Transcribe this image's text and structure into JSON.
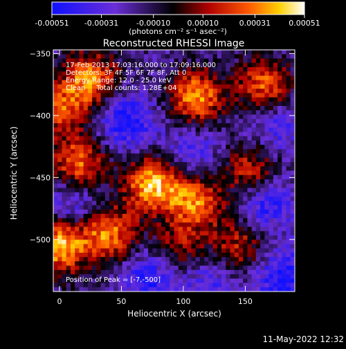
{
  "chart_data": {
    "type": "heatmap",
    "title": "Reconstructed RHESSI Image",
    "xlabel": "Heliocentric X (arcsec)",
    "ylabel": "Heliocentric Y (arcsec)",
    "xlim": [
      -5,
      190
    ],
    "ylim": [
      -542,
      -347
    ],
    "x_ticks": [
      0,
      50,
      100,
      150
    ],
    "y_ticks": [
      -350,
      -400,
      -450,
      -500
    ],
    "colorbar": {
      "ticks": [
        -0.00051,
        -0.00031,
        -0.0001,
        0.0001,
        0.00031,
        0.00051
      ],
      "tick_labels": [
        "-0.00051",
        "-0.00031",
        "-0.00010",
        "0.00010",
        "0.00031",
        "0.00051"
      ],
      "units": "(photons cm⁻² s⁻¹ asec⁻²)",
      "range": [
        -0.00051,
        0.00051
      ],
      "colormap": "blue-purple-black-red-orange-yellow-white"
    },
    "annotations": [
      "17-Feb-2013 17:03:16.000 to 17:09:16.000",
      "Detectors: 3F 4F 5F 6F 7F 8F, Att 0",
      "Energy Range: 12.0 - 25.0 keV",
      "Clean     Total counts: 1.28E+04",
      "Position of Peak = [-7,-500]"
    ],
    "peak_position": [
      -7,
      -500
    ],
    "hotspots": [
      {
        "x": 25,
        "y": -370,
        "value": 0.0004
      },
      {
        "x": 110,
        "y": -385,
        "value": 0.00045
      },
      {
        "x": 165,
        "y": -375,
        "value": 0.00035
      },
      {
        "x": 0,
        "y": -395,
        "value": 0.0003
      },
      {
        "x": 15,
        "y": -440,
        "value": 0.0004
      },
      {
        "x": 75,
        "y": -455,
        "value": 0.0005
      },
      {
        "x": 110,
        "y": -470,
        "value": 0.0004
      },
      {
        "x": 155,
        "y": -445,
        "value": 0.0003
      },
      {
        "x": 0,
        "y": -505,
        "value": 0.00051
      },
      {
        "x": 40,
        "y": -495,
        "value": 0.0004
      },
      {
        "x": 145,
        "y": -505,
        "value": 0.00025
      },
      {
        "x": 95,
        "y": -510,
        "value": 0.0002
      }
    ],
    "coldspots": [
      {
        "x": 55,
        "y": -405,
        "value": -0.0004
      },
      {
        "x": 105,
        "y": -430,
        "value": -0.0003
      },
      {
        "x": 165,
        "y": -470,
        "value": -0.0004
      },
      {
        "x": 10,
        "y": -470,
        "value": -0.00035
      },
      {
        "x": 75,
        "y": -530,
        "value": -0.0004
      },
      {
        "x": 120,
        "y": -535,
        "value": -0.0003
      },
      {
        "x": 180,
        "y": -530,
        "value": -0.0004
      },
      {
        "x": 175,
        "y": -410,
        "value": -0.0003
      }
    ]
  },
  "footer": {
    "timestamp": "11-May-2022 12:32"
  }
}
